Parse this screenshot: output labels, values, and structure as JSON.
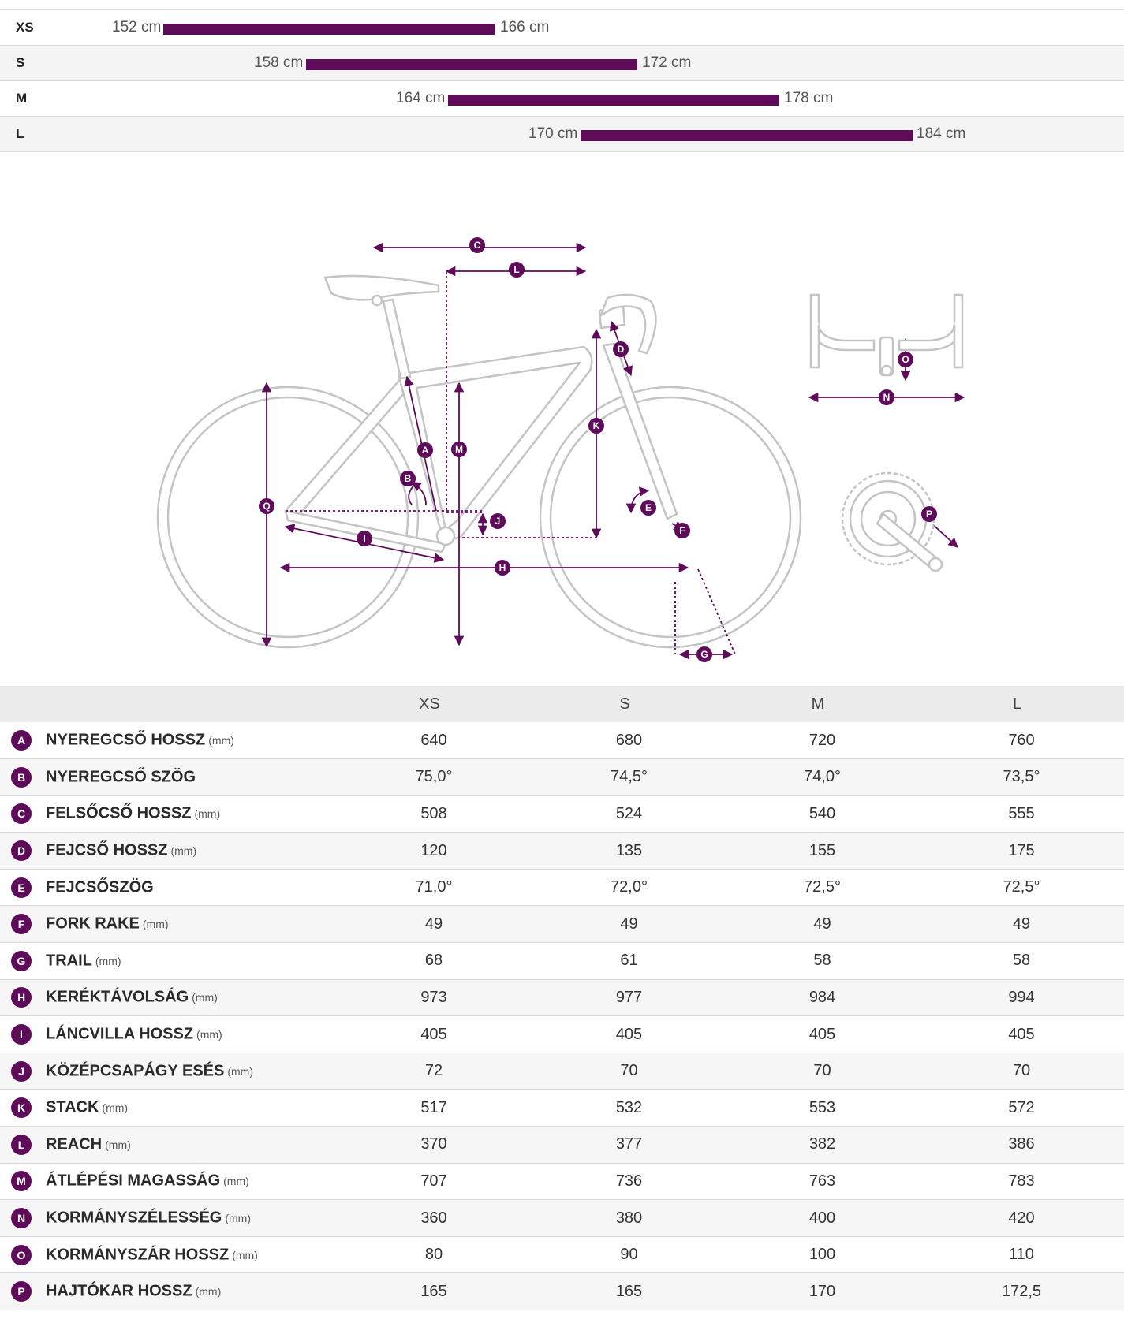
{
  "size_chart": {
    "rows": [
      {
        "size": "XS",
        "min": "152 cm",
        "max": "166 cm"
      },
      {
        "size": "S",
        "min": "158 cm",
        "max": "172 cm"
      },
      {
        "size": "M",
        "min": "164 cm",
        "max": "178 cm"
      },
      {
        "size": "L",
        "min": "170 cm",
        "max": "184 cm"
      }
    ]
  },
  "diagram": {
    "labels": [
      "A",
      "B",
      "C",
      "D",
      "E",
      "F",
      "G",
      "H",
      "I",
      "J",
      "K",
      "L",
      "M",
      "N",
      "O",
      "P",
      "Q"
    ]
  },
  "table": {
    "headers": [
      "XS",
      "S",
      "M",
      "L"
    ],
    "rows": [
      {
        "letter": "A",
        "name": "NYEREGCSŐ HOSSZ",
        "unit": "(mm)",
        "values": [
          "640",
          "680",
          "720",
          "760"
        ]
      },
      {
        "letter": "B",
        "name": "NYEREGCSŐ SZÖG",
        "unit": "",
        "values": [
          "75,0°",
          "74,5°",
          "74,0°",
          "73,5°"
        ]
      },
      {
        "letter": "C",
        "name": "FELSŐCSŐ HOSSZ",
        "unit": "(mm)",
        "values": [
          "508",
          "524",
          "540",
          "555"
        ]
      },
      {
        "letter": "D",
        "name": "FEJCSŐ HOSSZ",
        "unit": "(mm)",
        "values": [
          "120",
          "135",
          "155",
          "175"
        ]
      },
      {
        "letter": "E",
        "name": "FEJCSŐSZÖG",
        "unit": "",
        "values": [
          "71,0°",
          "72,0°",
          "72,5°",
          "72,5°"
        ]
      },
      {
        "letter": "F",
        "name": "FORK RAKE",
        "unit": "(mm)",
        "values": [
          "49",
          "49",
          "49",
          "49"
        ]
      },
      {
        "letter": "G",
        "name": "TRAIL",
        "unit": "(mm)",
        "values": [
          "68",
          "61",
          "58",
          "58"
        ]
      },
      {
        "letter": "H",
        "name": "KERÉKTÁVOLSÁG",
        "unit": "(mm)",
        "values": [
          "973",
          "977",
          "984",
          "994"
        ]
      },
      {
        "letter": "I",
        "name": "LÁNCVILLA HOSSZ",
        "unit": "(mm)",
        "values": [
          "405",
          "405",
          "405",
          "405"
        ]
      },
      {
        "letter": "J",
        "name": "KÖZÉPCSAPÁGY ESÉS",
        "unit": "(mm)",
        "values": [
          "72",
          "70",
          "70",
          "70"
        ]
      },
      {
        "letter": "K",
        "name": "STACK",
        "unit": "(mm)",
        "values": [
          "517",
          "532",
          "553",
          "572"
        ]
      },
      {
        "letter": "L",
        "name": "REACH",
        "unit": "(mm)",
        "values": [
          "370",
          "377",
          "382",
          "386"
        ]
      },
      {
        "letter": "M",
        "name": "ÁTLÉPÉSI MAGASSÁG",
        "unit": "(mm)",
        "values": [
          "707",
          "736",
          "763",
          "783"
        ]
      },
      {
        "letter": "N",
        "name": "KORMÁNYSZÉLESSÉG",
        "unit": "(mm)",
        "values": [
          "360",
          "380",
          "400",
          "420"
        ]
      },
      {
        "letter": "O",
        "name": "KORMÁNYSZÁR HOSSZ",
        "unit": "(mm)",
        "values": [
          "80",
          "90",
          "100",
          "110"
        ]
      },
      {
        "letter": "P",
        "name": "HAJTÓKAR HOSSZ",
        "unit": "(mm)",
        "values": [
          "165",
          "165",
          "170",
          "172,5"
        ]
      }
    ]
  },
  "colors": {
    "accent": "#5e0b5a",
    "frame": "#bdbdbd"
  }
}
